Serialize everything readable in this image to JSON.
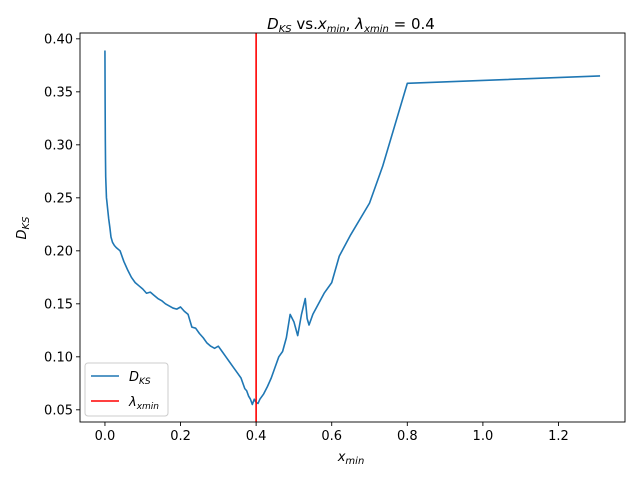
{
  "chart_data": {
    "type": "line",
    "title": {
      "a": "D",
      "a_sub": "KS",
      "b": " vs.",
      "c": "x",
      "c_sub": "min",
      "d": ", ",
      "e": "λ",
      "e_sub": "xmin",
      "f": " = 0.4"
    },
    "xlabel": {
      "main": "x",
      "sub": "min"
    },
    "ylabel": {
      "main": "D",
      "sub": "KS"
    },
    "xlim": [
      -0.066,
      1.376
    ],
    "ylim": [
      0.0385,
      0.4055
    ],
    "xticks": [
      {
        "value": 0.0,
        "label": "0.0"
      },
      {
        "value": 0.2,
        "label": "0.2"
      },
      {
        "value": 0.4,
        "label": "0.4"
      },
      {
        "value": 0.6,
        "label": "0.6"
      },
      {
        "value": 0.8,
        "label": "0.8"
      },
      {
        "value": 1.0,
        "label": "1.0"
      },
      {
        "value": 1.2,
        "label": "1.2"
      }
    ],
    "yticks": [
      {
        "value": 0.05,
        "label": "0.05"
      },
      {
        "value": 0.1,
        "label": "0.10"
      },
      {
        "value": 0.15,
        "label": "0.15"
      },
      {
        "value": 0.2,
        "label": "0.20"
      },
      {
        "value": 0.25,
        "label": "0.25"
      },
      {
        "value": 0.3,
        "label": "0.30"
      },
      {
        "value": 0.35,
        "label": "0.35"
      },
      {
        "value": 0.4,
        "label": "0.40"
      }
    ],
    "series": [
      {
        "name": "D_KS",
        "legend_main": "D",
        "legend_sub": "KS",
        "color": "#1f77b4",
        "x": [
          0.0,
          0.0005,
          0.001,
          0.0015,
          0.002,
          0.003,
          0.004,
          0.005,
          0.007,
          0.01,
          0.013,
          0.016,
          0.02,
          0.025,
          0.03,
          0.04,
          0.05,
          0.06,
          0.07,
          0.08,
          0.09,
          0.1,
          0.11,
          0.12,
          0.13,
          0.14,
          0.15,
          0.16,
          0.17,
          0.18,
          0.19,
          0.2,
          0.21,
          0.22,
          0.23,
          0.24,
          0.25,
          0.26,
          0.27,
          0.28,
          0.29,
          0.3,
          0.31,
          0.32,
          0.33,
          0.34,
          0.35,
          0.36,
          0.37,
          0.375,
          0.38,
          0.385,
          0.39,
          0.395,
          0.4,
          0.405,
          0.41,
          0.42,
          0.43,
          0.44,
          0.45,
          0.46,
          0.47,
          0.48,
          0.49,
          0.5,
          0.51,
          0.52,
          0.53,
          0.535,
          0.54,
          0.55,
          0.58,
          0.6,
          0.62,
          0.65,
          0.7,
          0.735,
          0.8,
          1.31
        ],
        "y": [
          0.389,
          0.34,
          0.305,
          0.285,
          0.27,
          0.26,
          0.25,
          0.247,
          0.24,
          0.23,
          0.222,
          0.213,
          0.208,
          0.205,
          0.203,
          0.2,
          0.19,
          0.182,
          0.175,
          0.17,
          0.167,
          0.164,
          0.16,
          0.161,
          0.158,
          0.155,
          0.153,
          0.15,
          0.148,
          0.146,
          0.145,
          0.147,
          0.143,
          0.14,
          0.128,
          0.127,
          0.122,
          0.118,
          0.113,
          0.11,
          0.108,
          0.11,
          0.105,
          0.1,
          0.095,
          0.09,
          0.085,
          0.08,
          0.07,
          0.068,
          0.063,
          0.06,
          0.055,
          0.06,
          0.057,
          0.056,
          0.06,
          0.065,
          0.072,
          0.08,
          0.09,
          0.1,
          0.105,
          0.118,
          0.14,
          0.133,
          0.12,
          0.14,
          0.155,
          0.136,
          0.13,
          0.14,
          0.16,
          0.17,
          0.195,
          0.215,
          0.245,
          0.28,
          0.358,
          0.365
        ]
      }
    ],
    "vline": {
      "x": 0.4,
      "color": "#ff0000",
      "legend_main": "λ",
      "legend_sub": "xmin"
    },
    "legend_placement": "lower-left",
    "grid": false
  }
}
